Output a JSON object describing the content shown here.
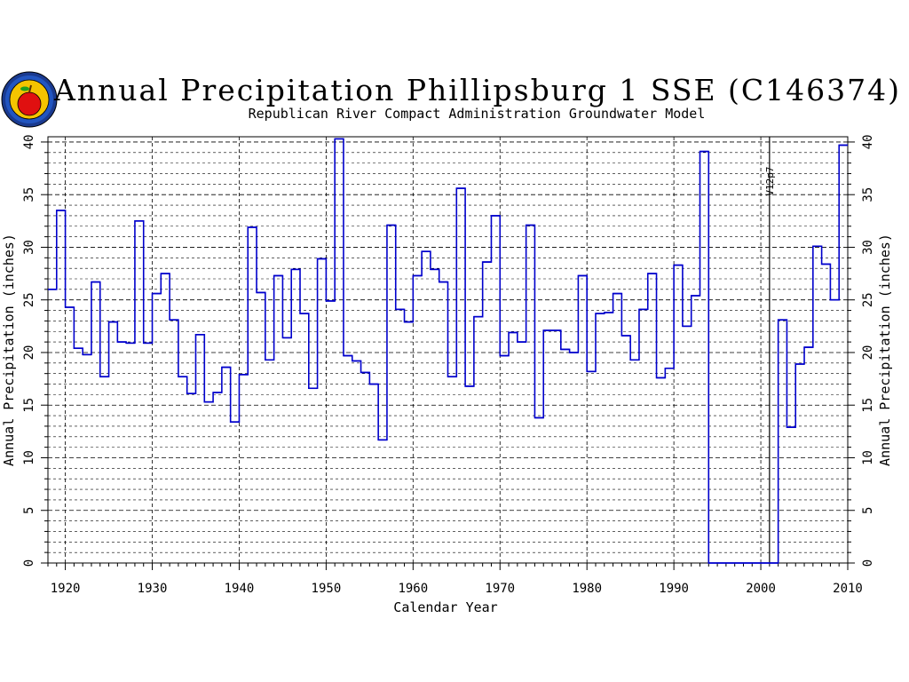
{
  "chart_data": {
    "type": "step",
    "title": "Annual Precipitation Phillipsburg 1 SSE (C146374)",
    "subtitle": "Republican River Compact Administration Groundwater Model",
    "xlabel": "Calendar Year",
    "ylabel": "Annual Precipitation (inches)",
    "ylabel_right": "Annual Precipitation (inches)",
    "xlim": [
      1918,
      2010
    ],
    "ylim": [
      0,
      40.5
    ],
    "x_ticks": [
      "1920",
      "1930",
      "1940",
      "1950",
      "1960",
      "1970",
      "1980",
      "1990",
      "2000",
      "2010"
    ],
    "y_ticks": [
      "0",
      "5",
      "10",
      "15",
      "20",
      "25",
      "30",
      "35",
      "40"
    ],
    "grid": true,
    "series_color": "#0000cc",
    "annotation": {
      "label": "V12p7",
      "x": 2001
    },
    "series": [
      {
        "x": [
          1918,
          1919,
          1920,
          1921,
          1922,
          1923,
          1924,
          1925,
          1926,
          1927,
          1928,
          1929,
          1930,
          1931,
          1932,
          1933,
          1934,
          1935,
          1936,
          1937,
          1938,
          1939,
          1940,
          1941,
          1942,
          1943,
          1944,
          1945,
          1946,
          1947,
          1948,
          1949,
          1950,
          1951,
          1952,
          1953,
          1954,
          1955,
          1956,
          1957,
          1958,
          1959,
          1960,
          1961,
          1962,
          1963,
          1964,
          1965,
          1966,
          1967,
          1968,
          1969,
          1970,
          1971,
          1972,
          1973,
          1974,
          1975,
          1976,
          1977,
          1978,
          1979,
          1980,
          1981,
          1982,
          1983,
          1984,
          1985,
          1986,
          1987,
          1988,
          1989,
          1990,
          1991,
          1992,
          1993,
          1994,
          1995,
          1996,
          1997,
          1998,
          1999,
          2000,
          2001,
          2002,
          2003,
          2004,
          2005,
          2006,
          2007,
          2008,
          2009
        ],
        "y": [
          26.0,
          33.5,
          24.3,
          20.4,
          19.8,
          26.7,
          17.7,
          22.9,
          21.0,
          20.9,
          32.5,
          20.9,
          25.6,
          27.5,
          23.1,
          17.7,
          16.1,
          21.7,
          15.3,
          16.2,
          18.6,
          13.4,
          17.9,
          31.9,
          25.7,
          19.3,
          27.3,
          21.4,
          27.9,
          23.7,
          16.6,
          28.9,
          24.9,
          40.3,
          19.7,
          19.2,
          18.1,
          17.0,
          11.7,
          32.1,
          24.1,
          22.9,
          27.3,
          29.6,
          27.9,
          26.7,
          17.7,
          35.6,
          16.8,
          23.4,
          28.6,
          33.0,
          19.7,
          21.9,
          21.0,
          32.1,
          13.8,
          22.1,
          22.1,
          20.3,
          20.0,
          27.3,
          18.2,
          23.7,
          23.8,
          25.6,
          21.6,
          19.3,
          24.1,
          27.5,
          17.6,
          18.5,
          28.3,
          22.5,
          25.4,
          39.1,
          0,
          0,
          0,
          0,
          0,
          0,
          0,
          0,
          23.1,
          12.9,
          18.9,
          20.5,
          30.1,
          28.4,
          25.0,
          39.7
        ]
      }
    ]
  }
}
